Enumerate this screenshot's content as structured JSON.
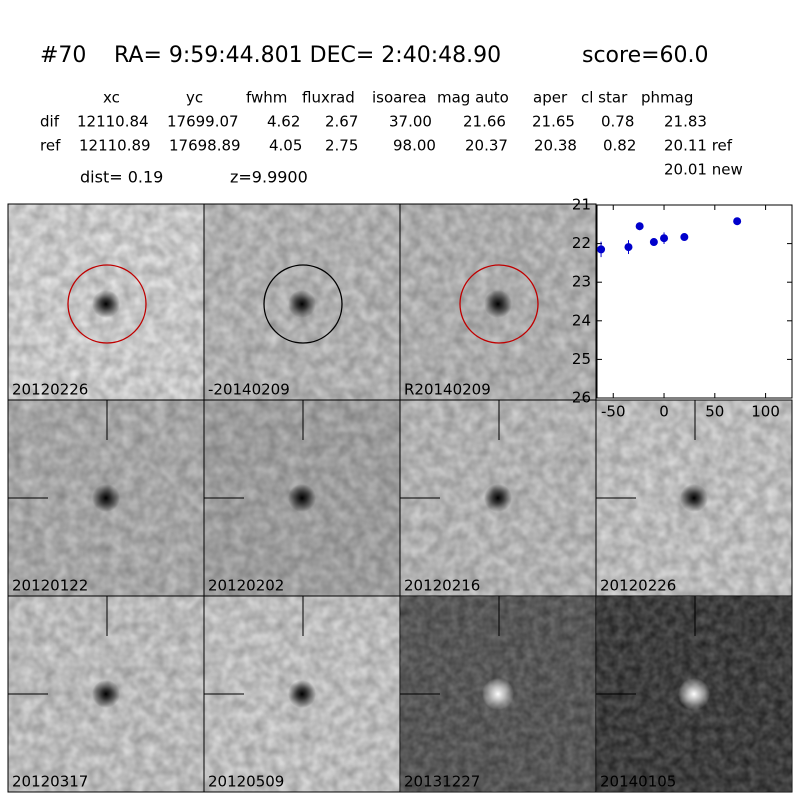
{
  "header": {
    "id": "#70",
    "coords": "RA= 9:59:44.801 DEC= 2:40:48.90",
    "score": "score=60.0"
  },
  "table": {
    "columns": [
      "xc",
      "yc",
      "fwhm",
      "fluxrad",
      "isoarea",
      "mag auto",
      "aper",
      "cl star",
      "phmag"
    ],
    "rows": [
      [
        "dif",
        "12110.84",
        "17699.07",
        "4.62",
        "2.67",
        "37.00",
        "21.66",
        "21.65",
        "0.78",
        "21.83"
      ],
      [
        "ref",
        "12110.89",
        "17698.89",
        "4.05",
        "2.75",
        "98.00",
        "20.37",
        "20.38",
        "0.82",
        "20.11 ref"
      ]
    ],
    "new_phmag": "20.01 new"
  },
  "dist": "dist=  0.19",
  "z": "z=9.9900",
  "panels": [
    {
      "label": "20120226"
    },
    {
      "label": "-20140209"
    },
    {
      "label": "R20140209"
    },
    {
      "label": "20120122"
    },
    {
      "label": "20120202"
    },
    {
      "label": "20120216"
    },
    {
      "label": "20120226",
      "label_color": "#ff0000"
    },
    {
      "label": "20120317"
    },
    {
      "label": "20120509"
    },
    {
      "label": "20131227"
    },
    {
      "label": "20140105"
    }
  ],
  "chart_data": {
    "type": "scatter",
    "x": [
      -62,
      -35,
      -24,
      -10,
      0,
      20,
      72
    ],
    "series": [
      {
        "color": "#0000cc",
        "values": [
          22.15,
          22.09,
          21.55,
          21.96,
          21.86,
          21.83,
          21.42
        ],
        "errors": [
          0.2,
          0.18,
          0.1,
          0.1,
          0.15,
          0.05,
          0.03
        ]
      }
    ],
    "xlim": [
      -66,
      126
    ],
    "ylim": [
      26,
      21
    ],
    "xticks": [
      -50,
      0,
      50,
      100
    ],
    "yticks": [
      21,
      22,
      23,
      24,
      25,
      26
    ]
  }
}
